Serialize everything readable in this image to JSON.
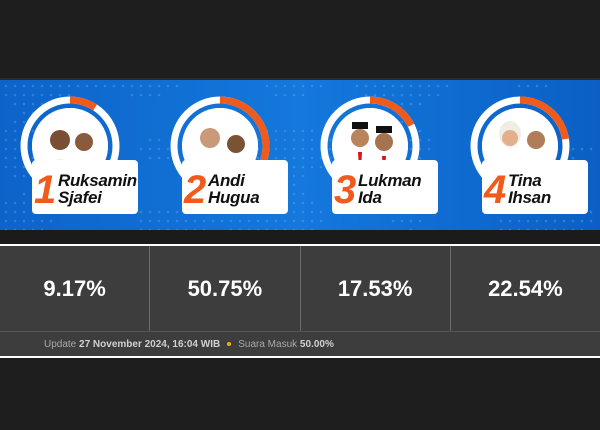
{
  "candidates": [
    {
      "number": "1",
      "name_line1": "Ruksamin",
      "name_line2": "Sjafei",
      "percentage": "9.17%",
      "progress": 0.0917
    },
    {
      "number": "2",
      "name_line1": "Andi",
      "name_line2": "Hugua",
      "percentage": "50.75%",
      "progress": 0.5075
    },
    {
      "number": "3",
      "name_line1": "Lukman",
      "name_line2": "Ida",
      "percentage": "17.53%",
      "progress": 0.1753
    },
    {
      "number": "4",
      "name_line1": "Tina",
      "name_line2": "Ihsan",
      "percentage": "22.54%",
      "progress": 0.2254
    }
  ],
  "footer": {
    "update_label": "Update",
    "update_time": "27 November 2024, 16:04 WIB",
    "votes_label": "Suara Masuk",
    "votes_value": "50.00%"
  },
  "colors": {
    "accent": "#f05a1a",
    "banner_blue": "#1478dc",
    "results_bg": "#3d3d3d"
  }
}
